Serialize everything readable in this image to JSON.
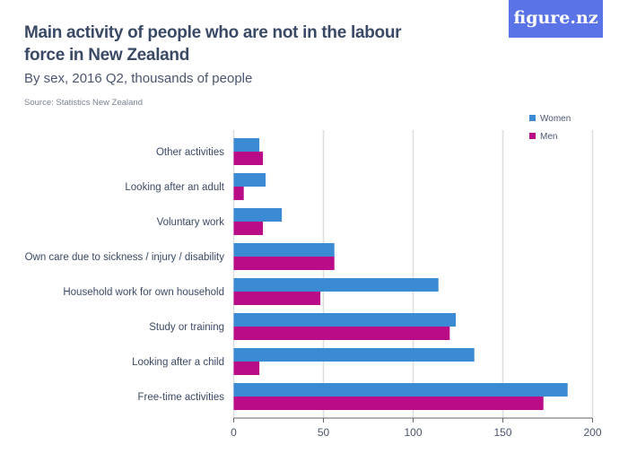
{
  "header": {
    "title": "Main activity of people who are not in the labour force in New Zealand",
    "subtitle": "By sex, 2016 Q2, thousands of people",
    "source": "Source: Statistics New Zealand",
    "logo": "figure.nz"
  },
  "chart_data": {
    "type": "bar",
    "orientation": "horizontal",
    "categories": [
      "Other activities",
      "Looking after an adult",
      "Voluntary work",
      "Own care due to sickness / injury / disability",
      "Household work for own household",
      "Study or training",
      "Looking after a child",
      "Free-time activities"
    ],
    "series": [
      {
        "name": "Women",
        "color": "#3b8ad4",
        "values": [
          14.3,
          17.8,
          26.8,
          56.1,
          114.1,
          123.8,
          134.1,
          186.1
        ]
      },
      {
        "name": "Men",
        "color": "#b90c86",
        "values": [
          16.3,
          5.6,
          16.3,
          56.1,
          48.3,
          120.4,
          14.3,
          172.6
        ]
      }
    ],
    "xlim": [
      0,
      200
    ],
    "xticks": [
      0,
      50,
      100,
      150,
      200
    ],
    "grid": true,
    "legend": "top-right"
  }
}
